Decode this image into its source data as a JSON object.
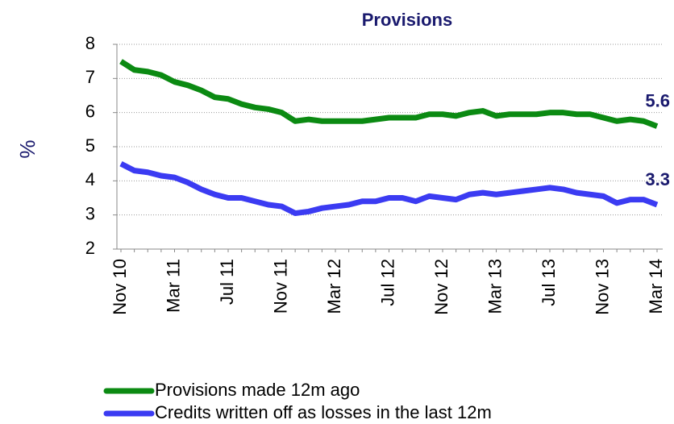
{
  "chart_data": {
    "type": "line",
    "title": "Provisions",
    "y_label": "%",
    "categories": [
      "Nov 10",
      null,
      null,
      null,
      "Mar 11",
      null,
      null,
      null,
      "Jul 11",
      null,
      null,
      null,
      "Nov 11",
      null,
      null,
      null,
      "Mar 12",
      null,
      null,
      null,
      "Jul 12",
      null,
      null,
      null,
      "Nov 12",
      null,
      null,
      null,
      "Mar 13",
      null,
      null,
      null,
      "Jul 13",
      null,
      null,
      null,
      "Nov 13",
      null,
      null,
      null,
      "Mar 14"
    ],
    "series": [
      {
        "name": "Provisions made 12m ago",
        "color": "#0b8a12",
        "values": [
          7.5,
          7.25,
          7.2,
          7.1,
          6.9,
          6.8,
          6.65,
          6.45,
          6.4,
          6.25,
          6.15,
          6.1,
          6.0,
          5.75,
          5.8,
          5.75,
          5.75,
          5.75,
          5.75,
          5.8,
          5.85,
          5.85,
          5.85,
          5.95,
          5.95,
          5.9,
          6.0,
          6.05,
          5.9,
          5.95,
          5.95,
          5.95,
          6.0,
          6.0,
          5.95,
          5.95,
          5.85,
          5.75,
          5.8,
          5.75,
          5.6
        ],
        "value_labels": [
          null,
          null,
          null,
          null,
          null,
          null,
          null,
          null,
          null,
          null,
          null,
          null,
          null,
          null,
          null,
          null,
          null,
          null,
          null,
          null,
          null,
          null,
          null,
          null,
          null,
          null,
          null,
          null,
          null,
          null,
          null,
          null,
          null,
          null,
          null,
          null,
          null,
          null,
          null,
          null,
          "5.6"
        ]
      },
      {
        "name": "Credits written off as losses in the last 12m",
        "color": "#3b3bf2",
        "values": [
          4.5,
          4.3,
          4.25,
          4.15,
          4.1,
          3.95,
          3.75,
          3.6,
          3.5,
          3.5,
          3.4,
          3.3,
          3.25,
          3.05,
          3.1,
          3.2,
          3.25,
          3.3,
          3.4,
          3.4,
          3.5,
          3.5,
          3.4,
          3.55,
          3.5,
          3.45,
          3.6,
          3.65,
          3.6,
          3.65,
          3.7,
          3.75,
          3.8,
          3.75,
          3.65,
          3.6,
          3.55,
          3.35,
          3.45,
          3.45,
          3.3
        ],
        "value_labels": [
          null,
          null,
          null,
          null,
          null,
          null,
          null,
          null,
          null,
          null,
          null,
          null,
          null,
          null,
          null,
          null,
          null,
          null,
          null,
          null,
          null,
          null,
          null,
          null,
          null,
          null,
          null,
          null,
          null,
          null,
          null,
          null,
          null,
          null,
          null,
          null,
          null,
          null,
          null,
          null,
          "3.3"
        ]
      }
    ],
    "ylim": [
      2,
      8
    ],
    "yticks": [
      2,
      3,
      4,
      5,
      6,
      7,
      8
    ],
    "grid": true,
    "legend": "bottom"
  }
}
